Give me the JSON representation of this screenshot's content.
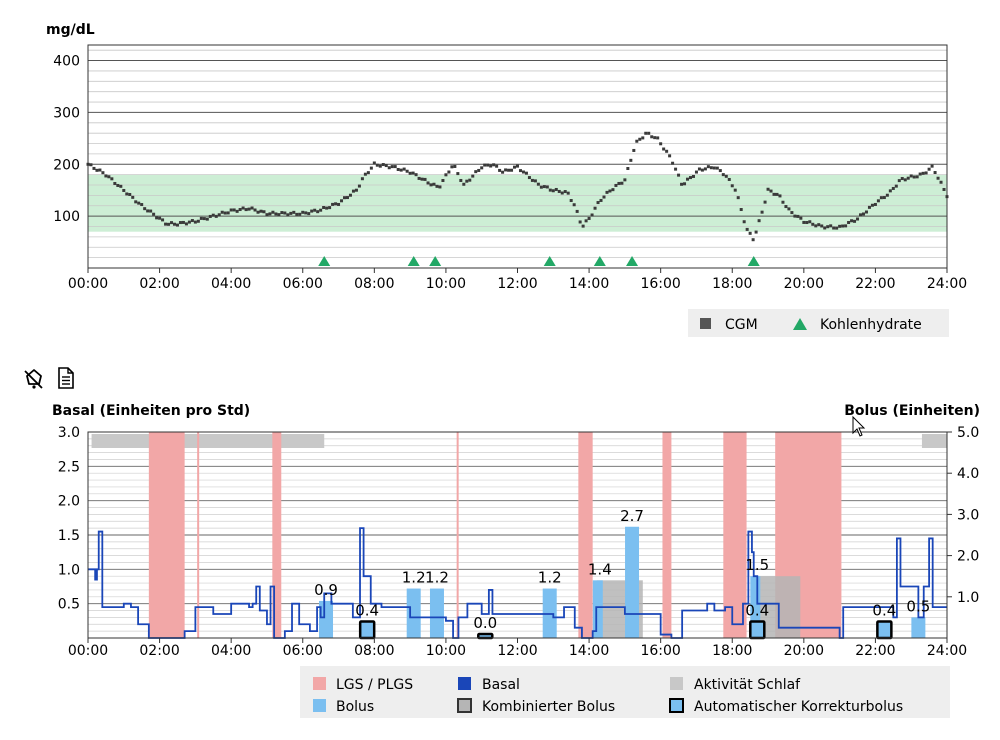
{
  "chart_data": [
    {
      "type": "scatter",
      "ylabel": "mg/dL",
      "ylim": [
        0,
        430
      ],
      "yticks": [
        100,
        200,
        300,
        400
      ],
      "xticks": [
        "00:00",
        "02:00",
        "04:00",
        "06:00",
        "08:00",
        "10:00",
        "12:00",
        "14:00",
        "16:00",
        "18:00",
        "20:00",
        "22:00",
        "24:00"
      ],
      "x_range_hours": [
        0,
        24
      ],
      "target_range": [
        70,
        180
      ],
      "cgm_keypoints": [
        [
          0,
          200
        ],
        [
          0.5,
          180
        ],
        [
          1,
          150
        ],
        [
          1.5,
          120
        ],
        [
          2,
          95
        ],
        [
          2.2,
          85
        ],
        [
          2.5,
          85
        ],
        [
          3,
          90
        ],
        [
          3.5,
          100
        ],
        [
          4,
          110
        ],
        [
          4.5,
          115
        ],
        [
          5,
          105
        ],
        [
          5.5,
          105
        ],
        [
          6,
          105
        ],
        [
          6.5,
          112
        ],
        [
          7,
          125
        ],
        [
          7.5,
          150
        ],
        [
          7.7,
          175
        ],
        [
          8,
          200
        ],
        [
          8.5,
          195
        ],
        [
          9,
          185
        ],
        [
          9.5,
          165
        ],
        [
          9.8,
          155
        ],
        [
          10.2,
          200
        ],
        [
          10.5,
          160
        ],
        [
          11,
          195
        ],
        [
          11.3,
          200
        ],
        [
          11.6,
          185
        ],
        [
          12,
          195
        ],
        [
          12.6,
          160
        ],
        [
          13,
          150
        ],
        [
          13.4,
          145
        ],
        [
          13.6,
          120
        ],
        [
          13.8,
          80
        ],
        [
          14,
          95
        ],
        [
          14.3,
          130
        ],
        [
          14.6,
          150
        ],
        [
          15,
          170
        ],
        [
          15.3,
          240
        ],
        [
          15.6,
          260
        ],
        [
          15.9,
          250
        ],
        [
          16.3,
          210
        ],
        [
          16.6,
          160
        ],
        [
          17.1,
          190
        ],
        [
          17.5,
          195
        ],
        [
          17.8,
          180
        ],
        [
          18.1,
          150
        ],
        [
          18.4,
          75
        ],
        [
          18.6,
          55
        ],
        [
          18.8,
          100
        ],
        [
          19,
          150
        ],
        [
          19.3,
          140
        ],
        [
          19.6,
          110
        ],
        [
          20,
          90
        ],
        [
          20.5,
          80
        ],
        [
          21,
          78
        ],
        [
          21.5,
          95
        ],
        [
          22,
          125
        ],
        [
          22.4,
          145
        ],
        [
          22.7,
          170
        ],
        [
          23,
          175
        ],
        [
          23.3,
          180
        ],
        [
          23.6,
          195
        ],
        [
          24,
          140
        ]
      ],
      "carb_times_hours": [
        6.6,
        9.1,
        9.7,
        12.9,
        14.3,
        15.2,
        18.6
      ],
      "legend": [
        {
          "label": "CGM",
          "color": "#555555",
          "marker": "square"
        },
        {
          "label": "Kohlenhydrate",
          "color": "#22a866",
          "marker": "triangle"
        }
      ]
    },
    {
      "type": "bar",
      "left_axis_label": "Basal (Einheiten pro Std)",
      "right_axis_label": "Bolus (Einheiten)",
      "left_ylim": [
        0,
        3.0
      ],
      "left_yticks": [
        "3.0",
        "2.5",
        "2.0",
        "1.5",
        "1.0",
        "0.5"
      ],
      "right_ylim": [
        0,
        5.0
      ],
      "right_yticks": [
        "5.0",
        "4.0",
        "3.0",
        "2.0",
        "1.0"
      ],
      "xticks": [
        "00:00",
        "02:00",
        "04:00",
        "06:00",
        "08:00",
        "10:00",
        "12:00",
        "14:00",
        "16:00",
        "18:00",
        "20:00",
        "22:00",
        "24:00"
      ],
      "x_range_hours": [
        0,
        24
      ],
      "lgs_periods": [
        [
          1.7,
          2.7
        ],
        [
          3.05,
          3.1
        ],
        [
          5.15,
          5.4
        ],
        [
          10.3,
          10.35
        ],
        [
          13.7,
          14.1
        ],
        [
          16.05,
          16.3
        ],
        [
          17.75,
          18.4
        ],
        [
          19.2,
          21.05
        ]
      ],
      "sleep_periods": [
        [
          0.1,
          6.6
        ],
        [
          23.3,
          24
        ]
      ],
      "basal_keypoints": [
        [
          0,
          1.0
        ],
        [
          0.2,
          0.85
        ],
        [
          0.25,
          1.0
        ],
        [
          0.3,
          1.55
        ],
        [
          0.4,
          0.45
        ],
        [
          0.8,
          0.45
        ],
        [
          1.0,
          0.5
        ],
        [
          1.2,
          0.45
        ],
        [
          1.4,
          0.2
        ],
        [
          1.7,
          0.0
        ],
        [
          2.65,
          0.0
        ],
        [
          2.7,
          0.1
        ],
        [
          3.0,
          0.45
        ],
        [
          3.5,
          0.35
        ],
        [
          4.0,
          0.5
        ],
        [
          4.4,
          0.5
        ],
        [
          4.5,
          0.45
        ],
        [
          4.6,
          0.5
        ],
        [
          4.7,
          0.75
        ],
        [
          4.8,
          0.4
        ],
        [
          5.0,
          0.2
        ],
        [
          5.1,
          0.75
        ],
        [
          5.2,
          0.0
        ],
        [
          5.5,
          0.1
        ],
        [
          5.7,
          0.5
        ],
        [
          5.9,
          0.2
        ],
        [
          6.2,
          0.1
        ],
        [
          6.4,
          0.45
        ],
        [
          6.5,
          0.3
        ],
        [
          6.6,
          0.65
        ],
        [
          6.8,
          0.5
        ],
        [
          7.0,
          0.5
        ],
        [
          7.4,
          0.3
        ],
        [
          7.6,
          1.6
        ],
        [
          7.7,
          0.9
        ],
        [
          7.9,
          0.5
        ],
        [
          8.2,
          0.45
        ],
        [
          8.6,
          0.45
        ],
        [
          9.0,
          0.3
        ],
        [
          9.6,
          0.3
        ],
        [
          10.0,
          0.25
        ],
        [
          10.2,
          0.0
        ],
        [
          10.35,
          0.3
        ],
        [
          10.6,
          0.5
        ],
        [
          11.0,
          0.35
        ],
        [
          11.2,
          0.7
        ],
        [
          11.3,
          0.35
        ],
        [
          12.5,
          0.35
        ],
        [
          13.0,
          0.3
        ],
        [
          13.3,
          0.45
        ],
        [
          13.6,
          0.15
        ],
        [
          13.8,
          0.0
        ],
        [
          14.1,
          0.1
        ],
        [
          14.2,
          0.45
        ],
        [
          14.5,
          0.45
        ],
        [
          15.0,
          0.35
        ],
        [
          15.5,
          0.35
        ],
        [
          16.0,
          0.05
        ],
        [
          16.3,
          0.0
        ],
        [
          16.6,
          0.4
        ],
        [
          17.2,
          0.4
        ],
        [
          17.3,
          0.5
        ],
        [
          17.5,
          0.4
        ],
        [
          17.8,
          0.45
        ],
        [
          18.0,
          0.2
        ],
        [
          18.3,
          0.5
        ],
        [
          18.45,
          1.55
        ],
        [
          18.55,
          1.25
        ],
        [
          18.6,
          0.9
        ],
        [
          18.7,
          0.5
        ],
        [
          19.1,
          0.5
        ],
        [
          19.3,
          0.15
        ],
        [
          20.5,
          0.15
        ],
        [
          21.0,
          0.0
        ],
        [
          21.1,
          0.45
        ],
        [
          21.5,
          0.45
        ],
        [
          22.0,
          0.45
        ],
        [
          22.5,
          0.3
        ],
        [
          22.6,
          1.45
        ],
        [
          22.7,
          0.75
        ],
        [
          23.0,
          0.75
        ],
        [
          23.2,
          0.3
        ],
        [
          23.35,
          0.75
        ],
        [
          23.5,
          1.45
        ],
        [
          23.6,
          0.45
        ],
        [
          24.0,
          0.45
        ]
      ],
      "bolus": [
        {
          "time": 6.65,
          "value": 0.9,
          "label": "0.9",
          "type": "Bolus"
        },
        {
          "time": 9.1,
          "value": 1.2,
          "label": "1.2",
          "type": "Bolus"
        },
        {
          "time": 9.75,
          "value": 1.2,
          "label": "1.2",
          "type": "Bolus"
        },
        {
          "time": 12.9,
          "value": 1.2,
          "label": "1.2",
          "type": "Bolus"
        },
        {
          "time": 14.3,
          "value": 1.4,
          "label": "1.4",
          "type": "Kombinierter Bolus"
        },
        {
          "time": 15.2,
          "value": 2.7,
          "label": "2.7",
          "type": "Bolus"
        },
        {
          "time": 18.7,
          "value": 1.5,
          "label": "1.5",
          "type": "Kombinierter Bolus"
        },
        {
          "time": 7.8,
          "value": 0.4,
          "label": "0.4",
          "type": "Automatischer Korrekturbolus"
        },
        {
          "time": 11.1,
          "value": 0.0,
          "label": "0.0",
          "type": "Automatischer Korrekturbolus"
        },
        {
          "time": 18.7,
          "value": 0.4,
          "label": "0.4",
          "type": "Automatischer Korrekturbolus"
        },
        {
          "time": 22.25,
          "value": 0.4,
          "label": "0.4",
          "type": "Automatischer Korrekturbolus"
        },
        {
          "time": 23.2,
          "value": 0.5,
          "label": "0.5",
          "type": "Bolus"
        }
      ],
      "legend": [
        {
          "label": "LGS / PLGS",
          "color": "#f2a7a7"
        },
        {
          "label": "Basal",
          "color": "#1a46b8"
        },
        {
          "label": "Aktivität Schlaf",
          "color": "#c8c8c8"
        },
        {
          "label": "Bolus",
          "color": "#7bbff0"
        },
        {
          "label": "Kombinierter Bolus",
          "color": "#b5b5b5"
        },
        {
          "label": "Automatischer Korrekturbolus",
          "color": "#7bbff0"
        }
      ]
    }
  ],
  "toolbar": {
    "icons": [
      "bell-off-icon",
      "document-icon"
    ]
  },
  "colors": {
    "target_band": "#cdeed5",
    "cgm": "#3a3a3a",
    "carbs": "#22a866",
    "basal": "#1a46b8",
    "bolus": "#7bbff0",
    "lgs": "#f2a7a7",
    "sleep": "#c8c8c8",
    "combined": "#b5b5b5"
  }
}
